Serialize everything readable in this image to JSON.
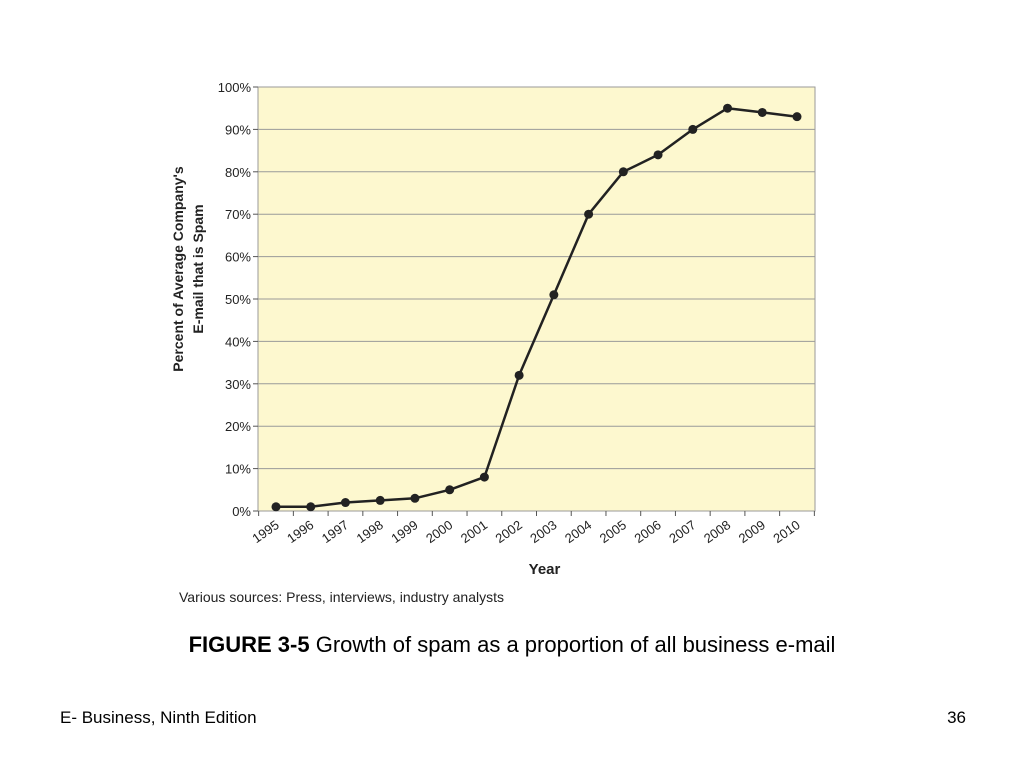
{
  "chart_data": {
    "type": "line",
    "xlabel": "Year",
    "ylabel": [
      "Percent of Average Company's",
      "E-mail that is Spam"
    ],
    "ylim": [
      0,
      100
    ],
    "yticks": [
      0,
      10,
      20,
      30,
      40,
      50,
      60,
      70,
      80,
      90,
      100
    ],
    "ytick_labels": [
      "0%",
      "10%",
      "20%",
      "30%",
      "40%",
      "50%",
      "60%",
      "70%",
      "80%",
      "90%",
      "100%"
    ],
    "categories": [
      "1995",
      "1996",
      "1997",
      "1998",
      "1999",
      "2000",
      "2001",
      "2002",
      "2003",
      "2004",
      "2005",
      "2006",
      "2007",
      "2008",
      "2009",
      "2010"
    ],
    "series": [
      {
        "values": [
          1,
          1,
          2,
          2.5,
          3,
          5,
          8,
          32,
          51,
          70,
          80,
          84,
          90,
          95,
          94,
          93
        ]
      }
    ],
    "grid": true,
    "colors": {
      "plot_background": "#fdf8cf",
      "line": "#222222",
      "grid": "#9a9a9a"
    }
  },
  "source_note": "Various sources: Press, interviews, industry analysts",
  "caption": {
    "label": "FIGURE 3-5",
    "text": " Growth of spam as a proportion of all business e-mail"
  },
  "footer": {
    "book_title": "E- Business, Ninth Edition",
    "page_number": "36"
  }
}
